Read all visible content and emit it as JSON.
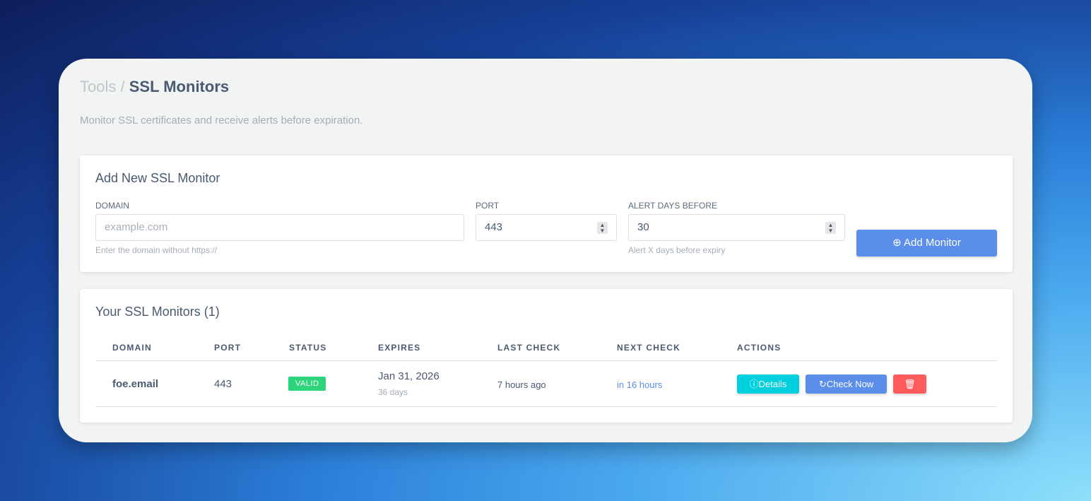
{
  "breadcrumb": {
    "parent": "Tools",
    "separator": "/",
    "current": "SSL Monitors"
  },
  "subtitle": "Monitor SSL certificates and receive alerts before expiration.",
  "add_form": {
    "title": "Add New SSL Monitor",
    "domain": {
      "label": "DOMAIN",
      "placeholder": "example.com",
      "hint": "Enter the domain without https://"
    },
    "port": {
      "label": "PORT",
      "value": "443"
    },
    "alert_days": {
      "label": "ALERT DAYS BEFORE",
      "value": "30",
      "hint": "Alert X days before expiry"
    },
    "submit_label": "Add Monitor"
  },
  "monitors": {
    "title": "Your SSL Monitors (1)",
    "columns": [
      "DOMAIN",
      "PORT",
      "STATUS",
      "EXPIRES",
      "LAST CHECK",
      "NEXT CHECK",
      "ACTIONS"
    ],
    "rows": [
      {
        "domain": "foe.email",
        "port": "443",
        "status": "VALID",
        "expires": "Jan 31, 2026",
        "expires_in": "36 days",
        "last_check": "7 hours ago",
        "next_check": "in 16 hours",
        "details_label": "Details",
        "check_label": "Check Now"
      }
    ]
  },
  "colors": {
    "accent": "#5b8dea",
    "valid": "#2ed47a",
    "details": "#00cfdd",
    "delete": "#ff5b5c",
    "link": "#5b8dea"
  }
}
